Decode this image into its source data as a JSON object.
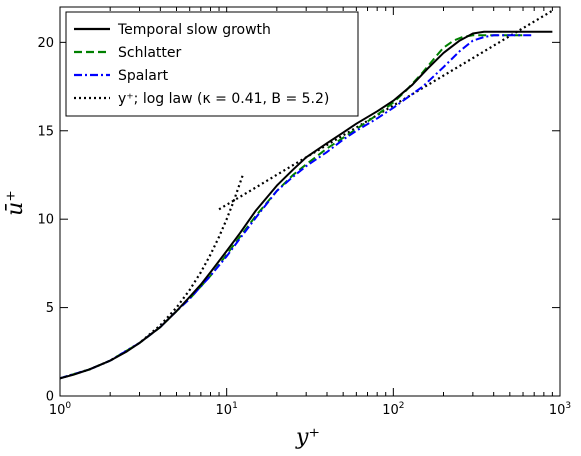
{
  "chart_data": {
    "type": "line",
    "xscale": "log",
    "xlim": [
      1,
      1000
    ],
    "ylim": [
      0,
      22
    ],
    "xlabel": "y⁺",
    "ylabel": "ū⁺",
    "grid": false,
    "legend_position": "top-left",
    "x_ticks": [
      {
        "value": 1,
        "base": "10",
        "exp": "0"
      },
      {
        "value": 10,
        "base": "10",
        "exp": "1"
      },
      {
        "value": 100,
        "base": "10",
        "exp": "2"
      },
      {
        "value": 1000,
        "base": "10",
        "exp": "3"
      }
    ],
    "y_ticks": [
      {
        "value": 0,
        "label": "0"
      },
      {
        "value": 5,
        "label": "5"
      },
      {
        "value": 10,
        "label": "10"
      },
      {
        "value": 15,
        "label": "15"
      },
      {
        "value": 20,
        "label": "20"
      }
    ],
    "series": [
      {
        "name": "Temporal slow growth",
        "color": "#000000",
        "style": "solid",
        "x": [
          1,
          1.2,
          1.5,
          2,
          2.5,
          3,
          4,
          5,
          6,
          7,
          8,
          10,
          12,
          15,
          20,
          25,
          30,
          40,
          50,
          60,
          80,
          100,
          130,
          160,
          200,
          250,
          300,
          350,
          400,
          500,
          600,
          700,
          900
        ],
        "y": [
          1.0,
          1.2,
          1.5,
          2.0,
          2.5,
          3.0,
          3.9,
          4.8,
          5.6,
          6.3,
          7.0,
          8.2,
          9.2,
          10.5,
          11.9,
          12.8,
          13.5,
          14.3,
          14.9,
          15.4,
          16.1,
          16.7,
          17.6,
          18.5,
          19.4,
          20.1,
          20.5,
          20.6,
          20.6,
          20.6,
          20.6,
          20.6,
          20.6
        ]
      },
      {
        "name": "Schlatter",
        "color": "#008000",
        "style": "dashed",
        "x": [
          1,
          1.5,
          2,
          3,
          4,
          5,
          6,
          8,
          10,
          12,
          15,
          20,
          25,
          30,
          40,
          50,
          60,
          80,
          100,
          120,
          150,
          180,
          200,
          230,
          260,
          300,
          350,
          400,
          500,
          600
        ],
        "y": [
          1.0,
          1.5,
          2.0,
          3.0,
          3.9,
          4.8,
          5.5,
          6.8,
          8.0,
          9.0,
          10.2,
          11.6,
          12.5,
          13.1,
          14.0,
          14.6,
          15.1,
          15.9,
          16.6,
          17.3,
          18.3,
          19.2,
          19.7,
          20.1,
          20.3,
          20.4,
          20.4,
          20.4,
          20.4,
          20.4
        ]
      },
      {
        "name": "Spalart",
        "color": "#0000ff",
        "style": "dashdot",
        "x": [
          1,
          1.5,
          2,
          3,
          4,
          5,
          6,
          8,
          10,
          12,
          15,
          20,
          25,
          30,
          40,
          50,
          60,
          80,
          100,
          150,
          200,
          250,
          300,
          350,
          400,
          450,
          500,
          600,
          700
        ],
        "y": [
          1.0,
          1.5,
          2.0,
          3.0,
          3.9,
          4.8,
          5.5,
          6.8,
          7.9,
          8.9,
          10.1,
          11.6,
          12.4,
          13.0,
          13.8,
          14.5,
          15.0,
          15.7,
          16.3,
          17.5,
          18.6,
          19.5,
          20.1,
          20.3,
          20.4,
          20.4,
          20.4,
          20.4,
          20.4
        ]
      },
      {
        "name": "log law",
        "legend_name": "y⁺;  log law (κ = 0.41, B = 5.2)",
        "color": "#000000",
        "style": "dotted",
        "segments": [
          {
            "x": [
              1,
              1.5,
              2,
              3,
              4,
              5,
              6,
              7,
              8,
              9,
              10,
              11,
              12.5
            ],
            "y": [
              1,
              1.5,
              2,
              3,
              4,
              5,
              6,
              7,
              8,
              9,
              10,
              11,
              12.5
            ]
          },
          {
            "x": [
              9,
              15,
              20,
              30,
              50,
              100,
              200,
              500,
              900
            ],
            "y": [
              10.56,
              11.8,
              12.51,
              13.5,
              14.74,
              16.43,
              18.12,
              20.36,
              21.79
            ]
          }
        ]
      }
    ]
  },
  "legend": {
    "items": [
      {
        "label": "Temporal slow growth"
      },
      {
        "label": "Schlatter"
      },
      {
        "label": "Spalart"
      },
      {
        "label": "y⁺;  log law (κ = 0.41, B = 5.2)"
      }
    ]
  }
}
